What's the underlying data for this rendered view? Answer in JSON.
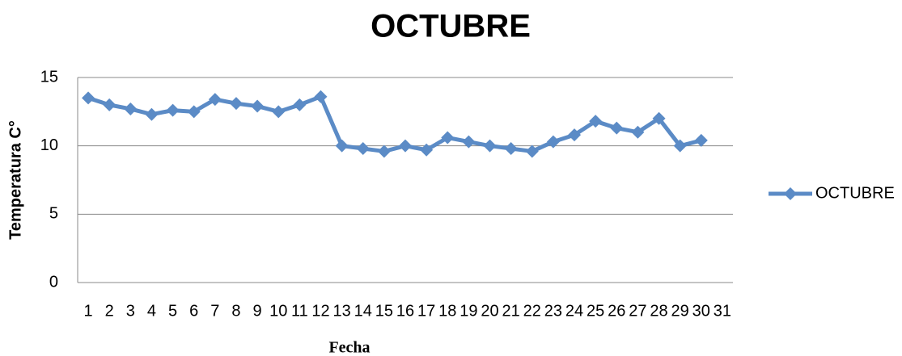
{
  "chart_data": {
    "type": "line",
    "title": "OCTUBRE",
    "x_label": "Fecha",
    "y_label": "Temperatura C°",
    "categories": [
      "1",
      "2",
      "3",
      "4",
      "5",
      "6",
      "7",
      "8",
      "9",
      "10",
      "11",
      "12",
      "13",
      "14",
      "15",
      "16",
      "17",
      "18",
      "19",
      "20",
      "21",
      "22",
      "23",
      "24",
      "25",
      "26",
      "27",
      "28",
      "29",
      "30",
      "31"
    ],
    "series": [
      {
        "name": "OCTUBRE",
        "color": "#5b8bc6",
        "values": [
          13.5,
          13.0,
          12.7,
          12.3,
          12.6,
          12.5,
          13.4,
          13.1,
          12.9,
          12.5,
          13.0,
          13.6,
          10.0,
          9.8,
          9.6,
          10.0,
          9.7,
          10.6,
          10.3,
          10.0,
          9.8,
          9.6,
          10.3,
          10.8,
          11.8,
          11.3,
          11.0,
          12.0,
          10.0,
          10.4,
          null
        ]
      }
    ],
    "ylim": [
      0,
      15
    ],
    "yticks": [
      0,
      5,
      10,
      15
    ],
    "grid": true,
    "legend": "right"
  }
}
